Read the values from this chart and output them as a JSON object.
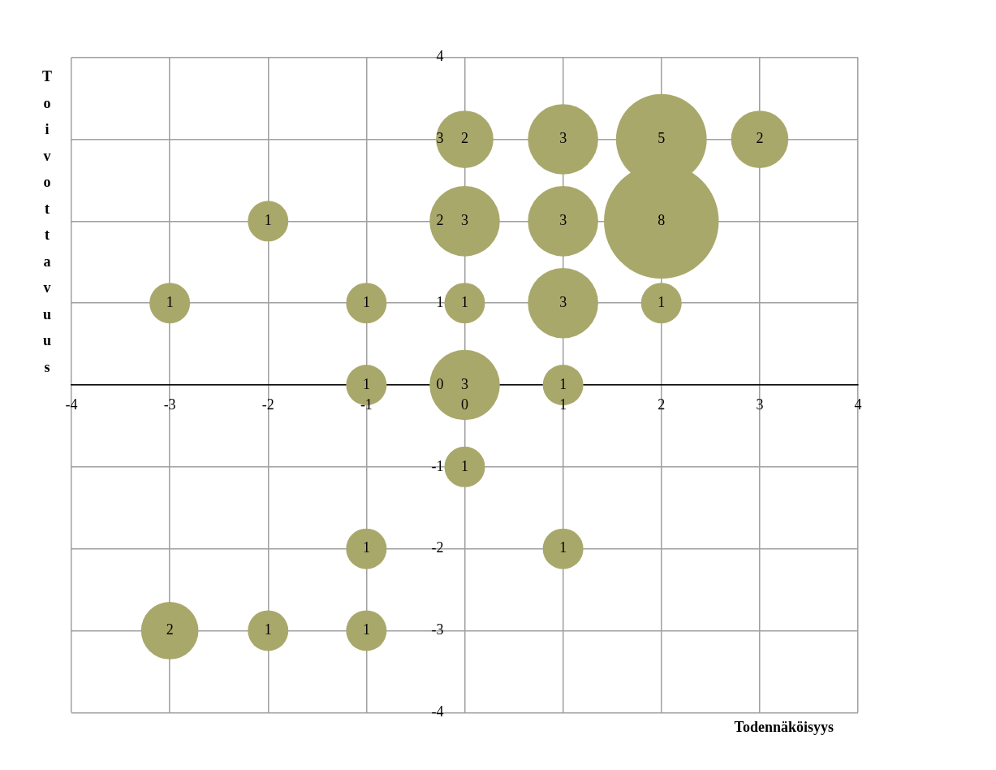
{
  "chart_data": {
    "type": "bubble",
    "xlabel": "Todennäköisyys",
    "ylabel": "Toivottavuus",
    "x": [
      -3,
      -2,
      -1,
      0,
      1,
      2,
      0,
      1,
      2,
      3,
      0,
      1,
      2,
      -1,
      0,
      1,
      0,
      -1,
      1,
      -3,
      -2,
      -1
    ],
    "values": [
      1,
      2,
      1,
      1,
      1,
      1,
      3,
      3,
      3,
      3,
      2,
      2,
      2,
      0,
      0,
      0,
      -1,
      -2,
      -2,
      -3,
      -3,
      -3
    ],
    "sizes": [
      1,
      1,
      1,
      1,
      3,
      1,
      2,
      3,
      5,
      2,
      3,
      3,
      8,
      1,
      3,
      1,
      1,
      1,
      1,
      2,
      1,
      1
    ],
    "value_labels": [
      "1",
      "1",
      "1",
      "1",
      "3",
      "1",
      "2",
      "3",
      "5",
      "2",
      "3",
      "3",
      "8",
      "1",
      "3",
      "1",
      "1",
      "1",
      "1",
      "2",
      "1",
      "1"
    ],
    "color": "#a9a86b",
    "xlim": [
      -4,
      4
    ],
    "xticks": [
      -4,
      -3,
      -2,
      -1,
      0,
      1,
      2,
      3,
      4
    ],
    "ylim": [
      -4,
      4
    ],
    "yticks": [
      -4,
      -3,
      -2,
      -1,
      0,
      1,
      2,
      3,
      4
    ],
    "grid": true,
    "legend": false
  }
}
